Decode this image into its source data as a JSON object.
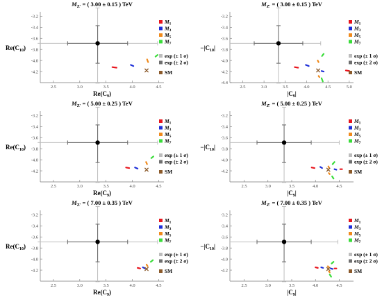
{
  "figure": {
    "panel_order": [
      "Re-3.00",
      "Abs-3.00",
      "Re-5.00",
      "Abs-5.00",
      "Re-7.00",
      "Abs-7.00"
    ]
  },
  "legend": {
    "models": [
      {
        "label": "M1",
        "sub": "1",
        "color": "#e8141c"
      },
      {
        "label": "M3",
        "sub": "3",
        "color": "#1c2ed8"
      },
      {
        "label": "M5",
        "sub": "5",
        "color": "#f08a1c"
      },
      {
        "label": "M7",
        "sub": "7",
        "color": "#3adc3a"
      }
    ],
    "exp1": "exp (± 1 σ)",
    "exp2": "exp (± 2 σ)",
    "sm": "SM",
    "exp1_color": "#bdbdbd",
    "exp2_color": "#6f6f6f",
    "sm_color": "#8b5a2b"
  },
  "chart_data": [
    {
      "type": "scatter",
      "title_sub": "Z′",
      "title_val": "= ( 3.00 ± 0.15 ) TeV",
      "xlabel_pre": "Re(C",
      "xlabel_sub": "9",
      "xlabel_post": ")",
      "ylabel_pre": "Re(C",
      "ylabel_sub": "10",
      "ylabel_post": ")",
      "xlim": [
        2.25,
        4.6
      ],
      "ylim": [
        -4.4,
        -3.12
      ],
      "xticks": [
        2.5,
        3.0,
        3.5,
        4.0,
        4.5
      ],
      "xtick_labels": [
        "2.5",
        "3.0",
        "3.5",
        "4.0",
        "4.5"
      ],
      "yticks": [
        -3.2,
        -3.4,
        -3.6,
        -3.8,
        -4.0,
        -4.2
      ],
      "ytick_labels": [
        "-3.2",
        "-3.4",
        "-3.6",
        "-3.8",
        "-4.0",
        "-4.2"
      ],
      "experiment": {
        "x": 3.34,
        "y": -3.69,
        "x1": [
          2.77,
          3.91
        ],
        "x2": [
          2.2,
          4.48
        ],
        "y1": [
          -4.05,
          -3.37
        ],
        "y2": [
          -4.41,
          -3.05
        ]
      },
      "sm": {
        "x": 4.27,
        "y": -4.18
      },
      "series": [
        {
          "model": "M1",
          "points": [
            [
              3.62,
              -4.12
            ],
            [
              3.7,
              -4.13
            ]
          ]
        },
        {
          "model": "M3",
          "points": [
            [
              3.97,
              -4.08
            ],
            [
              4.02,
              -4.1
            ]
          ]
        },
        {
          "model": "M5",
          "points": [
            [
              4.28,
              -3.98
            ],
            [
              4.3,
              -4.03
            ]
          ]
        },
        {
          "model": "M7",
          "points": [
            [
              4.44,
              -3.93
            ],
            [
              4.48,
              -3.9
            ]
          ]
        }
      ]
    },
    {
      "type": "scatter",
      "title_sub": "Z′",
      "title_val": "= ( 3.00 ± 0.15 ) TeV",
      "xlabel_pre": "|C",
      "xlabel_sub": "9",
      "xlabel_post": "|",
      "ylabel_pre": "−|C",
      "ylabel_sub": "10",
      "ylabel_post": "|",
      "xlim": [
        2.2,
        5.1
      ],
      "ylim": [
        -4.4,
        -3.12
      ],
      "xticks": [
        2.5,
        3.0,
        3.5,
        4.0,
        4.5,
        5.0
      ],
      "xtick_labels": [
        "2.5",
        "3.0",
        "3.5",
        "4.0",
        "4.5",
        "5.0"
      ],
      "yticks": [
        -3.2,
        -3.4,
        -3.6,
        -3.8,
        -4.0,
        -4.2,
        -4.4
      ],
      "ytick_labels": [
        "-3.2",
        "-3.4",
        "-3.6",
        "-3.8",
        "-4.0",
        "-4.2",
        "-4.4"
      ],
      "experiment": {
        "x": 3.34,
        "y": -3.69,
        "x1": [
          2.77,
          3.91
        ],
        "x2": [
          2.2,
          4.33
        ],
        "y1": [
          -4.05,
          -3.37
        ],
        "y2": [
          -4.41,
          -3.05
        ]
      },
      "sm": {
        "x": 4.27,
        "y": -4.18
      },
      "series": [
        {
          "model": "M1",
          "points": [
            [
              3.72,
              -4.12
            ],
            [
              3.8,
              -4.13
            ],
            [
              4.92,
              -4.18
            ],
            [
              5.0,
              -4.19
            ]
          ]
        },
        {
          "model": "M3",
          "points": [
            [
              3.98,
              -4.08
            ],
            [
              4.05,
              -4.1
            ],
            [
              4.35,
              -4.19
            ],
            [
              4.4,
              -4.2
            ]
          ]
        },
        {
          "model": "M5",
          "points": [
            [
              4.26,
              -4.0
            ],
            [
              4.28,
              -4.03
            ],
            [
              4.28,
              -4.28
            ],
            [
              4.3,
              -4.3
            ]
          ]
        },
        {
          "model": "M7",
          "points": [
            [
              4.36,
              -3.92
            ],
            [
              4.4,
              -3.88
            ],
            [
              4.35,
              -4.32
            ],
            [
              4.38,
              -4.38
            ]
          ]
        }
      ]
    },
    {
      "type": "scatter",
      "title_sub": "Z′",
      "title_val": "= ( 5.00 ± 0.25 ) TeV",
      "xlabel_pre": "Re(C",
      "xlabel_sub": "9",
      "xlabel_post": ")",
      "ylabel_pre": "Re(C",
      "ylabel_sub": "10",
      "ylabel_post": ")",
      "xlim": [
        2.25,
        4.6
      ],
      "ylim": [
        -4.4,
        -3.12
      ],
      "xticks": [
        2.5,
        3.0,
        3.5,
        4.0,
        4.5
      ],
      "xtick_labels": [
        "2.5",
        "3.0",
        "3.5",
        "4.0",
        "4.5"
      ],
      "yticks": [
        -3.2,
        -3.4,
        -3.6,
        -3.8,
        -4.0,
        -4.2
      ],
      "ytick_labels": [
        "-3.2",
        "-3.4",
        "-3.6",
        "-3.8",
        "-4.0",
        "-4.2"
      ],
      "experiment": {
        "x": 3.34,
        "y": -3.69,
        "x1": [
          2.77,
          3.91
        ],
        "x2": [
          2.2,
          4.48
        ],
        "y1": [
          -4.05,
          -3.37
        ],
        "y2": [
          -4.41,
          -3.05
        ]
      },
      "sm": {
        "x": 4.27,
        "y": -4.18
      },
      "series": [
        {
          "model": "M1",
          "points": [
            [
              3.88,
              -4.14
            ],
            [
              3.94,
              -4.15
            ]
          ]
        },
        {
          "model": "M3",
          "points": [
            [
              4.05,
              -4.14
            ],
            [
              4.1,
              -4.16
            ]
          ]
        },
        {
          "model": "M5",
          "points": [
            [
              4.26,
              -4.04
            ],
            [
              4.28,
              -4.08
            ]
          ]
        },
        {
          "model": "M7",
          "points": [
            [
              4.36,
              -3.97
            ],
            [
              4.4,
              -3.94
            ]
          ]
        }
      ]
    },
    {
      "type": "scatter",
      "title_sub": "Z′",
      "title_val": "= ( 5.00 ± 0.25 ) TeV",
      "xlabel_pre": "|C",
      "xlabel_sub": "9",
      "xlabel_post": "|",
      "ylabel_pre": "−|C",
      "ylabel_sub": "10",
      "ylabel_post": "|",
      "xlim": [
        2.2,
        4.8
      ],
      "ylim": [
        -4.4,
        -3.12
      ],
      "xticks": [
        2.5,
        3.0,
        3.5,
        4.0,
        4.5
      ],
      "xtick_labels": [
        "2.5",
        "3.0",
        "3.5",
        "4.0",
        "4.5"
      ],
      "yticks": [
        -3.2,
        -3.4,
        -3.6,
        -3.8,
        -4.0,
        -4.2
      ],
      "ytick_labels": [
        "-3.2",
        "-3.4",
        "-3.6",
        "-3.8",
        "-4.0",
        "-4.2"
      ],
      "experiment": {
        "x": 3.34,
        "y": -3.69,
        "x1": [
          2.77,
          3.91
        ],
        "x2": [
          2.2,
          4.5
        ],
        "y1": [
          -4.05,
          -3.37
        ],
        "y2": [
          -4.41,
          -3.05
        ]
      },
      "sm": {
        "x": 4.27,
        "y": -4.18
      },
      "series": [
        {
          "model": "M1",
          "points": [
            [
              3.92,
              -4.14
            ],
            [
              3.98,
              -4.15
            ],
            [
              4.52,
              -4.17
            ],
            [
              4.56,
              -4.17
            ]
          ]
        },
        {
          "model": "M3",
          "points": [
            [
              4.1,
              -4.13
            ],
            [
              4.14,
              -4.15
            ],
            [
              4.4,
              -4.17
            ],
            [
              4.44,
              -4.18
            ]
          ]
        },
        {
          "model": "M5",
          "points": [
            [
              4.27,
              -4.12
            ],
            [
              4.29,
              -4.15
            ],
            [
              4.28,
              -4.24
            ],
            [
              4.3,
              -4.26
            ]
          ]
        },
        {
          "model": "M7",
          "points": [
            [
              4.36,
              -4.08
            ],
            [
              4.4,
              -4.04
            ],
            [
              4.35,
              -4.3
            ],
            [
              4.38,
              -4.34
            ]
          ]
        }
      ]
    },
    {
      "type": "scatter",
      "title_sub": "Z′",
      "title_val": "= ( 7.00 ± 0.35 ) TeV",
      "xlabel_pre": "Re(C",
      "xlabel_sub": "9",
      "xlabel_post": ")",
      "ylabel_pre": "Re(C",
      "ylabel_sub": "10",
      "ylabel_post": ")",
      "xlim": [
        2.25,
        4.6
      ],
      "ylim": [
        -4.4,
        -3.12
      ],
      "xticks": [
        2.5,
        3.0,
        3.5,
        4.0,
        4.5
      ],
      "xtick_labels": [
        "2.5",
        "3.0",
        "3.5",
        "4.0",
        "4.5"
      ],
      "yticks": [
        -3.2,
        -3.4,
        -3.6,
        -3.8,
        -4.0,
        -4.2
      ],
      "ytick_labels": [
        "-3.2",
        "-3.4",
        "-3.6",
        "-3.8",
        "-4.0",
        "-4.2"
      ],
      "experiment": {
        "x": 3.34,
        "y": -3.69,
        "x1": [
          2.77,
          3.91
        ],
        "x2": [
          2.2,
          4.48
        ],
        "y1": [
          -4.05,
          -3.37
        ],
        "y2": [
          -4.41,
          -3.05
        ]
      },
      "sm": {
        "x": 4.27,
        "y": -4.18
      },
      "series": [
        {
          "model": "M1",
          "points": [
            [
              4.1,
              -4.16
            ],
            [
              4.15,
              -4.17
            ]
          ]
        },
        {
          "model": "M3",
          "points": [
            [
              4.2,
              -4.15
            ],
            [
              4.24,
              -4.17
            ]
          ]
        },
        {
          "model": "M5",
          "points": [
            [
              4.27,
              -4.1
            ],
            [
              4.29,
              -4.13
            ]
          ]
        },
        {
          "model": "M7",
          "points": [
            [
              4.35,
              -4.05
            ],
            [
              4.39,
              -4.02
            ]
          ]
        }
      ]
    },
    {
      "type": "scatter",
      "title_sub": "Z′",
      "title_val": "= ( 7.00 ± 0.35 ) TeV",
      "xlabel_pre": "|C",
      "xlabel_sub": "9",
      "xlabel_post": "|",
      "ylabel_pre": "−|C",
      "ylabel_sub": "10",
      "ylabel_post": "|",
      "xlim": [
        2.2,
        4.8
      ],
      "ylim": [
        -4.4,
        -3.12
      ],
      "xticks": [
        2.5,
        3.0,
        3.5,
        4.0,
        4.5
      ],
      "xtick_labels": [
        "2.5",
        "3.0",
        "3.5",
        "4.0",
        "4.5"
      ],
      "yticks": [
        -3.2,
        -3.4,
        -3.6,
        -3.8,
        -4.0,
        -4.2
      ],
      "ytick_labels": [
        "-3.2",
        "-3.4",
        "-3.6",
        "-3.8",
        "-4.0",
        "-4.2"
      ],
      "experiment": {
        "x": 3.34,
        "y": -3.69,
        "x1": [
          2.77,
          3.91
        ],
        "x2": [
          2.2,
          4.47
        ],
        "y1": [
          -4.05,
          -3.37
        ],
        "y2": [
          -4.41,
          -3.05
        ]
      },
      "sm": {
        "x": 4.27,
        "y": -4.18
      },
      "series": [
        {
          "model": "M1",
          "points": [
            [
              4.0,
              -4.15
            ],
            [
              4.05,
              -4.16
            ],
            [
              4.4,
              -4.17
            ],
            [
              4.44,
              -4.17
            ]
          ]
        },
        {
          "model": "M3",
          "points": [
            [
              4.12,
              -4.15
            ],
            [
              4.16,
              -4.16
            ],
            [
              4.32,
              -4.17
            ],
            [
              4.36,
              -4.18
            ]
          ]
        },
        {
          "model": "M5",
          "points": [
            [
              4.26,
              -4.13
            ],
            [
              4.28,
              -4.15
            ],
            [
              4.28,
              -4.22
            ],
            [
              4.3,
              -4.24
            ]
          ]
        },
        {
          "model": "M7",
          "points": [
            [
              4.34,
              -4.08
            ],
            [
              4.38,
              -4.05
            ],
            [
              4.3,
              -4.28
            ],
            [
              4.33,
              -4.32
            ]
          ]
        }
      ]
    }
  ]
}
